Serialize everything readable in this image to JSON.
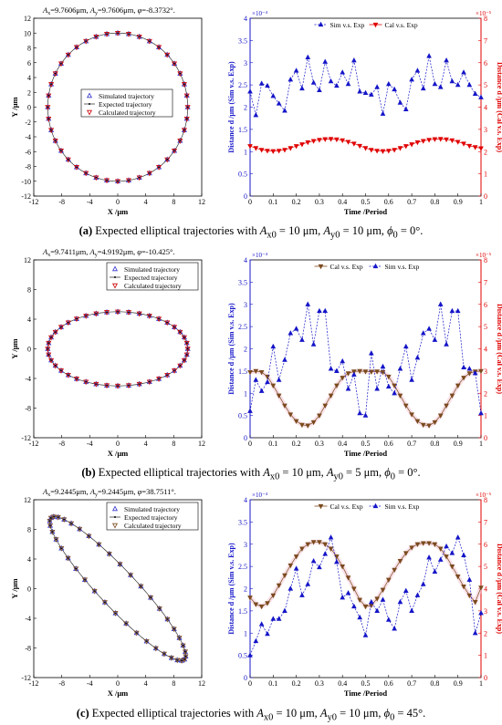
{
  "chart_data": [
    {
      "panel": "a",
      "type": "scatter",
      "title": "A_x=9.7606μm, A_y=9.7606μm, φ=-8.3732°.",
      "title_parts": {
        "ax": "9.7606μm",
        "ay": "9.7606μm",
        "phi": "=-8.3732°."
      },
      "xlabel": "X /μm",
      "ylabel": "Y /μm",
      "xlim": [
        -12,
        12
      ],
      "ylim": [
        -12,
        12
      ],
      "xticks": [
        "-12",
        "-8",
        "-4",
        "0",
        "4",
        "8",
        "12"
      ],
      "yticks": [
        "-12",
        "-10",
        "-8",
        "-6",
        "-4",
        "-2",
        "0",
        "2",
        "4",
        "6",
        "8",
        "10",
        "12"
      ],
      "legend": [
        "Simulated trajectory",
        "Expected trajectory",
        "Calculated trajectory"
      ],
      "legend_position": "center",
      "ellipse": {
        "ax": 10,
        "ay": 10,
        "phi_deg": 0,
        "markers": 40
      },
      "colors": {
        "simulated": "#3333cc",
        "expected": "#000000",
        "calculated": "#cc0000"
      }
    },
    {
      "panel": "a",
      "type": "line",
      "xlabel": "Time /Period",
      "ylabel_left": "Distance d /μm (Sim v.s. Exp)",
      "ylabel_right": "Distance d /μm (Cal v.s. Exp)",
      "left_scale": "×10⁻⁴",
      "right_scale": "×10⁻⁵",
      "xlim": [
        0,
        1
      ],
      "ylim_left": [
        0,
        4
      ],
      "ylim_right": [
        0,
        8
      ],
      "xticks": [
        "0",
        "0.1",
        "0.2",
        "0.3",
        "0.4",
        "0.5",
        "0.6",
        "0.7",
        "0.8",
        "0.9",
        "1"
      ],
      "yticks_left": [
        "0",
        "0.5",
        "1",
        "1.5",
        "2",
        "2.5",
        "3",
        "3.5",
        "4"
      ],
      "yticks_right": [
        "0",
        "1",
        "2",
        "3",
        "4",
        "5",
        "6",
        "7",
        "8"
      ],
      "legend": [
        "Sim v.s. Exp",
        "Cal v.s. Exp"
      ],
      "legend_position": "top",
      "series": [
        {
          "name": "Sim v.s. Exp",
          "axis": "left",
          "color": "#1515c8",
          "marker": "triangle-up",
          "values": [
            2.35,
            1.82,
            2.53,
            2.48,
            2.25,
            2.08,
            1.92,
            2.62,
            2.82,
            2.42,
            3.12,
            2.55,
            2.38,
            3.02,
            2.58,
            2.48,
            2.78,
            2.52,
            3.05,
            2.35,
            2.32,
            2.28,
            2.45,
            1.85,
            2.52,
            2.4,
            2.1,
            1.95,
            2.62,
            2.82,
            2.42,
            3.15,
            2.52,
            2.45,
            3.05,
            2.58,
            2.5,
            2.78,
            2.5,
            2.3,
            2.22
          ]
        },
        {
          "name": "Cal v.s. Exp",
          "axis": "right",
          "color": "#e00000",
          "marker": "triangle-down",
          "values": [
            2.25,
            2.16,
            2.08,
            2.04,
            2.02,
            2.04,
            2.08,
            2.16,
            2.25,
            2.33,
            2.42,
            2.48,
            2.53,
            2.56,
            2.57,
            2.55,
            2.51,
            2.44,
            2.36,
            2.26,
            2.16,
            2.08,
            2.04,
            2.02,
            2.04,
            2.08,
            2.16,
            2.25,
            2.33,
            2.42,
            2.48,
            2.53,
            2.56,
            2.57,
            2.55,
            2.51,
            2.44,
            2.36,
            2.26,
            2.2,
            2.15
          ]
        }
      ]
    },
    {
      "panel": "b",
      "type": "scatter",
      "title": "A_x=9.7411μm, A_y=4.9192μm, φ=-10.425°.",
      "title_parts": {
        "ax": "9.7411μm",
        "ay": "4.9192μm",
        "phi": "=-10.425°."
      },
      "xlabel": "X /μm",
      "ylabel": "Y /μm",
      "xlim": [
        -12,
        12
      ],
      "ylim": [
        -12,
        12
      ],
      "xticks": [
        "-12",
        "-8",
        "-4",
        "0",
        "4",
        "8",
        "12"
      ],
      "yticks": [
        "-12",
        "-8",
        "-4",
        "0",
        "4",
        "8",
        "12"
      ],
      "legend": [
        "Simulated trajectory",
        "Expected trajectory",
        "Calculated trajectory"
      ],
      "legend_position": "top-right",
      "ellipse": {
        "ax": 10,
        "ay": 5,
        "phi_deg": 0,
        "markers": 40
      },
      "colors": {
        "simulated": "#3333cc",
        "expected": "#000000",
        "calculated": "#cc0000"
      }
    },
    {
      "panel": "b",
      "type": "line",
      "xlabel": "Time /Period",
      "ylabel_left": "Distance d /μm (Sim v.s. Exp)",
      "ylabel_right": "Distance d /μm (Cal v.s. Exp)",
      "left_scale": "×10⁻⁴",
      "right_scale": "×10⁻⁵",
      "xlim": [
        0,
        1
      ],
      "ylim_left": [
        0,
        4
      ],
      "ylim_right": [
        0,
        8
      ],
      "xticks": [
        "0",
        "0.1",
        "0.2",
        "0.3",
        "0.4",
        "0.5",
        "0.6",
        "0.7",
        "0.8",
        "0.9",
        "1"
      ],
      "yticks_left": [
        "0",
        "0.5",
        "1",
        "1.5",
        "2",
        "2.5",
        "3",
        "3.5",
        "4"
      ],
      "yticks_right": [
        "0",
        "1",
        "2",
        "3",
        "4",
        "5",
        "6",
        "7",
        "8"
      ],
      "legend": [
        "Cal v.s. Exp",
        "Sim v.s. Exp"
      ],
      "legend_position": "top",
      "series": [
        {
          "name": "Cal v.s. Exp",
          "axis": "right",
          "color": "#7a4a1e",
          "marker": "triangle-down",
          "values": [
            2.95,
            3.0,
            2.95,
            2.75,
            2.35,
            1.9,
            1.45,
            1.05,
            0.75,
            0.58,
            0.55,
            0.7,
            1.0,
            1.45,
            1.9,
            2.35,
            2.7,
            2.9,
            2.98,
            3.0,
            2.98,
            2.97,
            2.98,
            2.95,
            2.75,
            2.35,
            1.9,
            1.45,
            1.05,
            0.75,
            0.58,
            0.55,
            0.7,
            1.0,
            1.45,
            1.9,
            2.35,
            2.7,
            2.9,
            2.98,
            3.0
          ]
        },
        {
          "name": "Sim v.s. Exp",
          "axis": "left",
          "color": "#1515c8",
          "marker": "triangle-up",
          "values": [
            0.6,
            1.3,
            1.05,
            1.25,
            2.05,
            1.3,
            1.75,
            2.35,
            2.45,
            2.2,
            3.0,
            2.1,
            2.85,
            2.85,
            1.55,
            1.5,
            1.72,
            1.1,
            1.42,
            0.55,
            0.5,
            1.9,
            1.1,
            1.6,
            1.15,
            1.0,
            1.55,
            2.05,
            1.3,
            1.8,
            2.35,
            2.45,
            2.2,
            3.0,
            2.1,
            2.85,
            2.85,
            1.58,
            1.55,
            1.45,
            0.55
          ]
        }
      ]
    },
    {
      "panel": "c",
      "type": "scatter",
      "title": "A_x=9.2445μm, A_y=9.2445μm, φ=38.7511°.",
      "title_parts": {
        "ax": "9.2445μm",
        "ay": "9.2445μm",
        "phi": "=38.7511°."
      },
      "xlabel": "X /μm",
      "ylabel": "Y /μm",
      "xlim": [
        -12,
        12
      ],
      "ylim": [
        -12,
        12
      ],
      "xticks": [
        "-12",
        "-8",
        "-4",
        "0",
        "4",
        "8",
        "12"
      ],
      "yticks": [
        "-12",
        "-8",
        "-4",
        "0",
        "4",
        "8",
        "12"
      ],
      "legend": [
        "Simulated trajectory",
        "Expected trajectory",
        "Calculated trajectory"
      ],
      "legend_position": "top-right",
      "ellipse": {
        "ax": 13.5,
        "ay": 2.6,
        "phi_deg": -45,
        "markers": 40
      },
      "colors": {
        "simulated": "#3333cc",
        "expected": "#000000",
        "calculated": "#7a4a1e"
      }
    },
    {
      "panel": "c",
      "type": "line",
      "xlabel": "Time /Period",
      "ylabel_left": "Distance d /μm (Sim v.s. Exp)",
      "ylabel_right": "Distance d /μm (Cal v.s. Exp)",
      "left_scale": "×10⁻⁴",
      "right_scale": "×10⁻⁵",
      "xlim": [
        0,
        1
      ],
      "ylim_left": [
        0,
        4
      ],
      "ylim_right": [
        0,
        8
      ],
      "xticks": [
        "0",
        "0.1",
        "0.2",
        "0.3",
        "0.4",
        "0.5",
        "0.6",
        "0.7",
        "0.8",
        "0.9",
        "1"
      ],
      "yticks_left": [
        "0",
        "0.5",
        "1",
        "1.5",
        "2",
        "2.5",
        "3",
        "3.5",
        "4"
      ],
      "yticks_right": [
        "0",
        "1",
        "2",
        "3",
        "4",
        "5",
        "6",
        "7",
        "8"
      ],
      "legend": [
        "Cal v.s. Exp",
        "Sim v.s. Exp"
      ],
      "legend_position": "top",
      "series": [
        {
          "name": "Cal v.s. Exp",
          "axis": "right",
          "color": "#7a4a1e",
          "marker": "triangle-down",
          "values": [
            3.6,
            3.3,
            3.2,
            3.35,
            3.7,
            4.15,
            4.6,
            5.05,
            5.45,
            5.8,
            6.0,
            6.1,
            6.1,
            6.0,
            5.8,
            5.45,
            5.0,
            4.5,
            4.0,
            3.5,
            3.2,
            3.25,
            3.55,
            3.95,
            4.4,
            4.85,
            5.25,
            5.6,
            5.85,
            6.0,
            6.05,
            6.05,
            6.0,
            5.8,
            5.45,
            5.0,
            4.55,
            4.1,
            3.7,
            3.4,
            4.05
          ]
        },
        {
          "name": "Sim v.s. Exp",
          "axis": "left",
          "color": "#1515c8",
          "marker": "triangle-up",
          "values": [
            0.5,
            0.82,
            1.2,
            0.98,
            1.32,
            1.32,
            1.5,
            2.0,
            2.45,
            1.85,
            2.1,
            2.62,
            2.48,
            2.78,
            3.15,
            2.6,
            1.8,
            1.9,
            1.6,
            1.35,
            0.95,
            1.7,
            1.5,
            1.75,
            1.3,
            1.1,
            1.7,
            1.95,
            1.5,
            1.85,
            2.1,
            2.7,
            2.38,
            2.65,
            2.95,
            2.8,
            3.15,
            2.75,
            2.2,
            1.0,
            1.45
          ]
        }
      ]
    }
  ],
  "captions": [
    {
      "label": "(a)",
      "text": "Expected elliptical trajectories with",
      "ax0": "A",
      "ax0_sub": "x0",
      "ax0_val": " = 10 μm, ",
      "ay0": "A",
      "ay0_sub": "y0",
      "ay0_val": " = 10 μm, ",
      "phi0": "ϕ",
      "phi0_sub": "0",
      "phi0_val": " = 0°."
    },
    {
      "label": "(b)",
      "text": "Expected elliptical trajectories with",
      "ax0": "A",
      "ax0_sub": "x0",
      "ax0_val": " = 10 μm, ",
      "ay0": "A",
      "ay0_sub": "y0",
      "ay0_val": " = 5 μm, ",
      "phi0": "ϕ",
      "phi0_sub": "0",
      "phi0_val": " = 0°."
    },
    {
      "label": "(c)",
      "text": "Expected elliptical trajectories with",
      "ax0": "A",
      "ax0_sub": "x0",
      "ax0_val": " = 10 μm, ",
      "ay0": "A",
      "ay0_sub": "y0",
      "ay0_val": " = 10 μm, ",
      "phi0": "ϕ",
      "phi0_sub": "0",
      "phi0_val": " = 45°."
    }
  ]
}
